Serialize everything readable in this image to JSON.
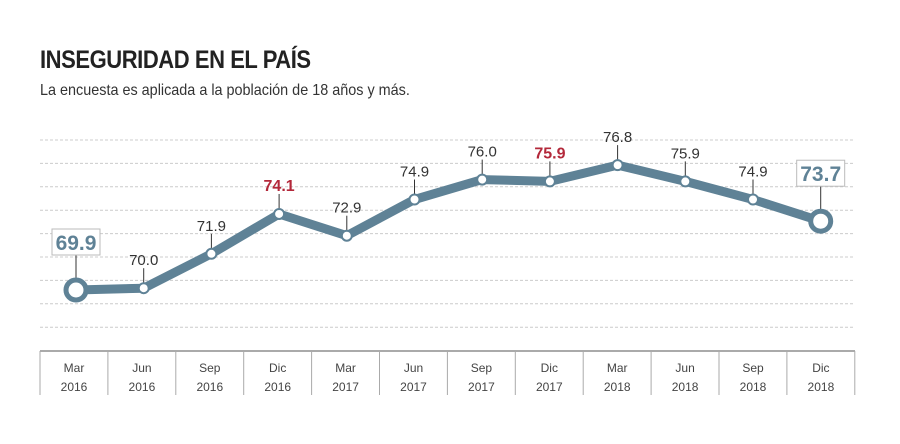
{
  "chart_data": {
    "type": "line",
    "title": "INSEGURIDAD EN EL PAÍS",
    "subtitle": "La encuesta es aplicada a la población de 18 años y más.",
    "categories": [
      [
        "Mar",
        "2016"
      ],
      [
        "Jun",
        "2016"
      ],
      [
        "Sep",
        "2016"
      ],
      [
        "Dic",
        "2016"
      ],
      [
        "Mar",
        "2017"
      ],
      [
        "Jun",
        "2017"
      ],
      [
        "Sep",
        "2017"
      ],
      [
        "Dic",
        "2017"
      ],
      [
        "Mar",
        "2018"
      ],
      [
        "Jun",
        "2018"
      ],
      [
        "Sep",
        "2018"
      ],
      [
        "Dic",
        "2018"
      ]
    ],
    "values": [
      69.9,
      70.0,
      71.9,
      74.1,
      72.9,
      74.9,
      76.0,
      75.9,
      76.8,
      75.9,
      74.9,
      73.7
    ],
    "labels": [
      "69.9",
      "70.0",
      "71.9",
      "74.1",
      "72.9",
      "74.9",
      "76.0",
      "75.9",
      "76.8",
      "75.9",
      "74.9",
      "73.7"
    ],
    "highlighted_red": [
      3,
      7
    ],
    "boxed": [
      0,
      11
    ],
    "grid": true,
    "colors": {
      "line": "#5f8296",
      "highlight": "#b3283a",
      "text": "#333333",
      "grid": "#cccccc"
    }
  }
}
